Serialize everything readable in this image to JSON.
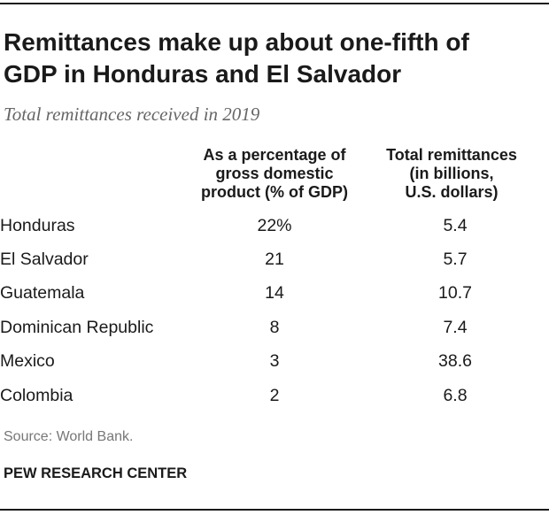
{
  "title_lines": [
    "Remittances make up about one-fifth of",
    "GDP in Honduras and El Salvador"
  ],
  "subtitle": "Total remittances received in 2019",
  "chart_data": {
    "type": "table",
    "title": "Remittances make up about one-fifth of GDP in Honduras and El Salvador",
    "subtitle": "Total remittances received in 2019",
    "columns": [
      {
        "header_lines": [
          "As a percentage of",
          "gross domestic",
          "product (% of GDP)"
        ]
      },
      {
        "header_lines": [
          "Total remittances",
          "(in billions,",
          "U.S. dollars)"
        ]
      }
    ],
    "rows": [
      {
        "country": "Honduras",
        "pct_gdp": 22,
        "pct_gdp_label": "22%",
        "remittances": 5.4,
        "remittances_label": "5.4"
      },
      {
        "country": "El Salvador",
        "pct_gdp": 21,
        "pct_gdp_label": "21",
        "remittances": 5.7,
        "remittances_label": "5.7"
      },
      {
        "country": "Guatemala",
        "pct_gdp": 14,
        "pct_gdp_label": "14",
        "remittances": 10.7,
        "remittances_label": "10.7"
      },
      {
        "country": "Dominican Republic",
        "pct_gdp": 8,
        "pct_gdp_label": "8",
        "remittances": 7.4,
        "remittances_label": "7.4"
      },
      {
        "country": "Mexico",
        "pct_gdp": 3,
        "pct_gdp_label": "3",
        "remittances": 38.6,
        "remittances_label": "38.6"
      },
      {
        "country": "Colombia",
        "pct_gdp": 2,
        "pct_gdp_label": "2",
        "remittances": 6.8,
        "remittances_label": "6.8"
      }
    ]
  },
  "source": "Source: World Bank.",
  "brand": "PEW RESEARCH CENTER"
}
